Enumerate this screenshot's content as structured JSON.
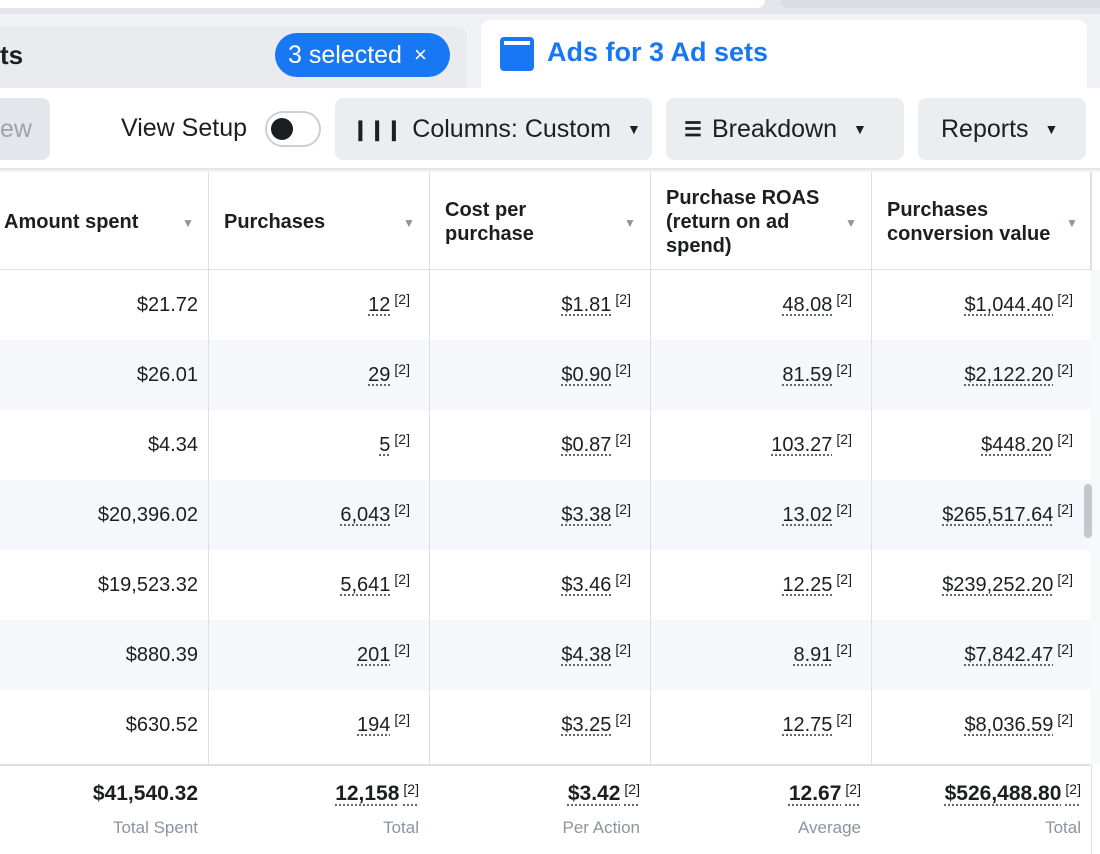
{
  "header": {
    "left_tab_title": "ts",
    "selected_chip": "3 selected",
    "selected_chip_close": "×",
    "right_tab_title": "Ads for 3 Ad sets"
  },
  "toolbar": {
    "left_button": "ew",
    "view_setup_label": "View Setup",
    "columns_label": "Columns: Custom",
    "breakdown_label": "Breakdown",
    "reports_label": "Reports"
  },
  "table": {
    "columns": [
      {
        "key": "amount_spent",
        "label": "Amount spent"
      },
      {
        "key": "purchases",
        "label": "Purchases"
      },
      {
        "key": "cost_per_purchase",
        "label": "Cost per purchase"
      },
      {
        "key": "roas",
        "label": "Purchase ROAS (return on ad spend)"
      },
      {
        "key": "conversion_value",
        "label": "Purchases conversion value"
      }
    ],
    "footnote": "[2]",
    "rows": [
      {
        "amount_spent": "$21.72",
        "purchases": "12",
        "cost_per_purchase": "$1.81",
        "roas": "48.08",
        "conversion_value": "$1,044.40"
      },
      {
        "amount_spent": "$26.01",
        "purchases": "29",
        "cost_per_purchase": "$0.90",
        "roas": "81.59",
        "conversion_value": "$2,122.20"
      },
      {
        "amount_spent": "$4.34",
        "purchases": "5",
        "cost_per_purchase": "$0.87",
        "roas": "103.27",
        "conversion_value": "$448.20"
      },
      {
        "amount_spent": "$20,396.02",
        "purchases": "6,043",
        "cost_per_purchase": "$3.38",
        "roas": "13.02",
        "conversion_value": "$265,517.64"
      },
      {
        "amount_spent": "$19,523.32",
        "purchases": "5,641",
        "cost_per_purchase": "$3.46",
        "roas": "12.25",
        "conversion_value": "$239,252.20"
      },
      {
        "amount_spent": "$880.39",
        "purchases": "201",
        "cost_per_purchase": "$4.38",
        "roas": "8.91",
        "conversion_value": "$7,842.47"
      },
      {
        "amount_spent": "$630.52",
        "purchases": "194",
        "cost_per_purchase": "$3.25",
        "roas": "12.75",
        "conversion_value": "$8,036.59"
      }
    ],
    "totals": {
      "amount_spent": {
        "value": "$41,540.32",
        "label": "Total Spent"
      },
      "purchases": {
        "value": "12,158",
        "label": "Total"
      },
      "cost_per_purchase": {
        "value": "$3.42",
        "label": "Per Action"
      },
      "roas": {
        "value": "12.67",
        "label": "Average"
      },
      "conversion_value": {
        "value": "$526,488.80",
        "label": "Total"
      }
    }
  },
  "icons": {
    "sort": "sort-caret-icon",
    "columns": "columns-icon",
    "breakdown": "breakdown-icon",
    "caret": "caret-down-icon"
  },
  "colors": {
    "accent": "#1877f2",
    "row_alt": "#f5f7fb"
  }
}
